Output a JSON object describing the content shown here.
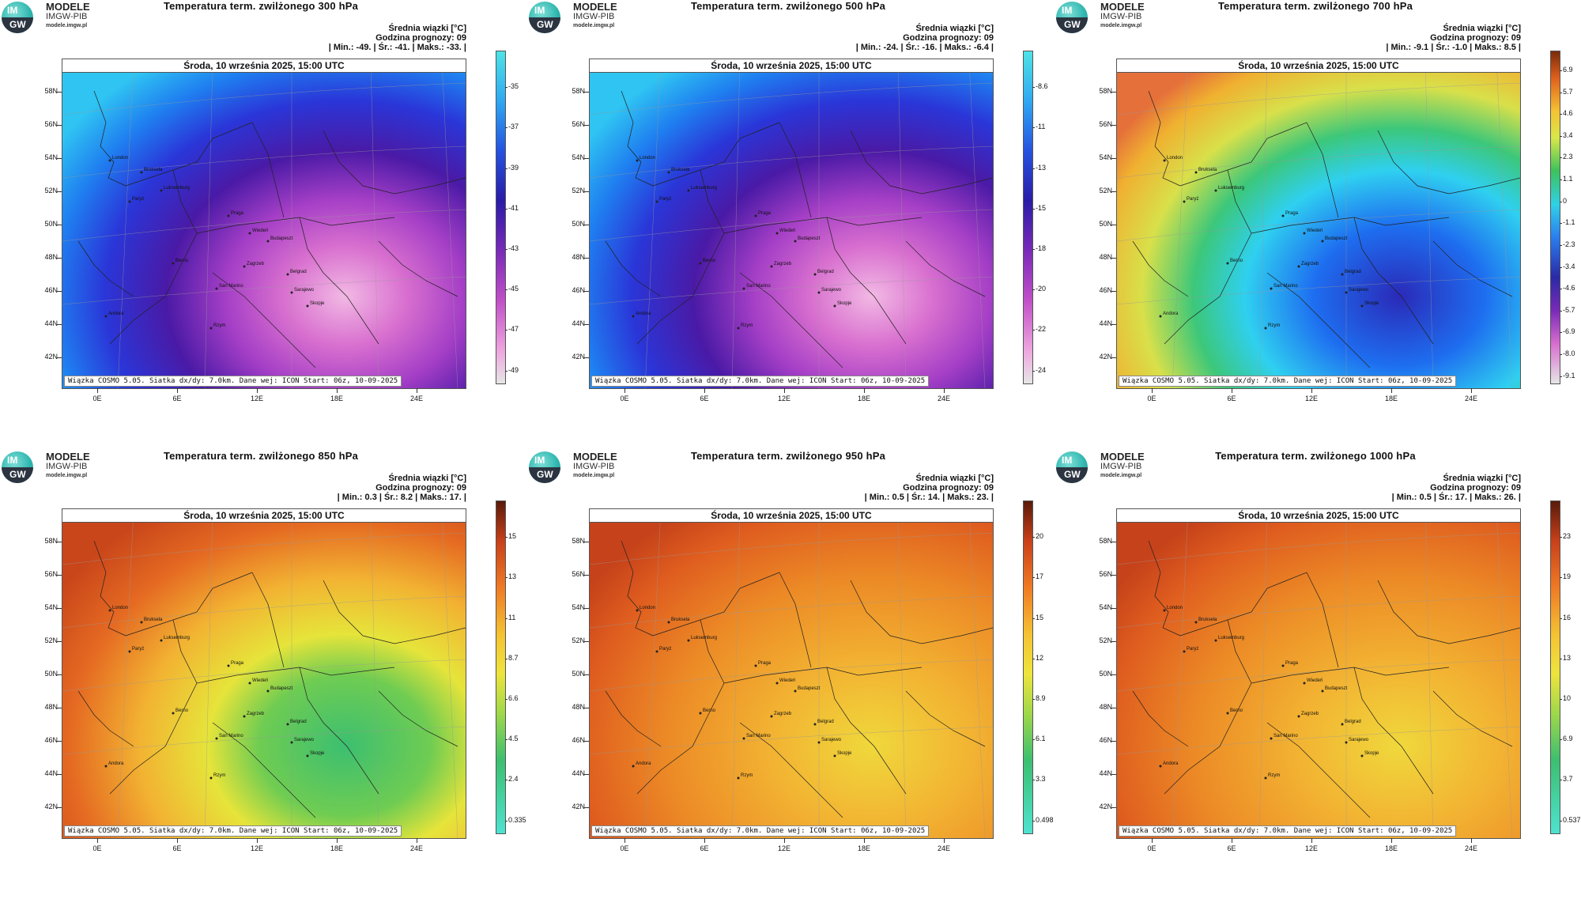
{
  "logo": {
    "line1": "MODELE",
    "line2": "IMGW-PIB",
    "line3": "modele.imgw.pl",
    "badge_top": "IM",
    "badge_bottom": "GW"
  },
  "common": {
    "subtitle": "Średnia wiązki [°C]",
    "forecast_hour": "Godzina prognozy: 09",
    "date": "Środa, 10 września 2025, 15:00 UTC",
    "footer": "Wiązka COSMO 5.05. Siatka dx/dy: 7.0km. Dane wej: ICON Start: 06z, 10-09-2025",
    "lat_labels": [
      "58N",
      "56N",
      "54N",
      "52N",
      "50N",
      "48N",
      "46N",
      "44N",
      "42N"
    ],
    "lon_labels": [
      "0E",
      "6E",
      "12E",
      "18E",
      "24E"
    ],
    "cities": [
      "London",
      "Bruksela",
      "Luksemburg",
      "Paryż",
      "Praga",
      "Wiedeń",
      "Budapeszt",
      "Berno",
      "Zagrzeb",
      "Belgrad",
      "San Marino",
      "Sarajewo",
      "Skopje",
      "Andora",
      "Rzym"
    ]
  },
  "panels": [
    {
      "title": "Temperatura term. zwilżonego 300 hPa",
      "stats": "| Min.:  -49. | Śr.:  -41. | Maks.:  -33. |",
      "cbar_labels": [
        "-35",
        "-37",
        "-39",
        "-41",
        "-43",
        "-45",
        "-47",
        "-49"
      ],
      "scheme": "cold",
      "colors": {
        "cbar_top": "#4de3e6",
        "cbar_bottom": "#e6e6e6"
      }
    },
    {
      "title": "Temperatura term. zwilżonego 500 hPa",
      "stats": "| Min.:  -24. | Śr.:  -16. | Maks.:  -6.4 |",
      "cbar_labels": [
        "-8.6",
        "-11",
        "-13",
        "-15",
        "-18",
        "-20",
        "-22",
        "-24"
      ],
      "scheme": "cold",
      "colors": {
        "cbar_top": "#4de3e6",
        "cbar_bottom": "#e6e6e6"
      }
    },
    {
      "title": "Temperatura term. zwilżonego 700 hPa",
      "stats": "| Min.:  -9.1 | Śr.:  -1.0 | Maks.:  8.5 |",
      "cbar_labels": [
        "6.9",
        "5.7",
        "4.6",
        "3.4",
        "2.3",
        "1.1",
        "0",
        "-1.1",
        "-2.3",
        "-3.4",
        "-4.6",
        "-5.7",
        "-6.9",
        "-8.0",
        "-9.1"
      ],
      "scheme": "mid",
      "colors": {
        "cbar_top": "#7a2a0a",
        "cbar_bottom": "#e6e6e6"
      }
    },
    {
      "title": "Temperatura term. zwilżonego 850 hPa",
      "stats": "| Min.:  0.3 | Śr.:  8.2 | Maks.:  17. |",
      "cbar_labels": [
        "15",
        "13",
        "11",
        "8.7",
        "6.6",
        "4.5",
        "2.4",
        "0.335"
      ],
      "scheme": "warm850",
      "colors": {
        "cbar_top": "#5a1a0a",
        "cbar_bottom": "#4de3d0"
      }
    },
    {
      "title": "Temperatura term. zwilżonego 950 hPa",
      "stats": "| Min.:  0.5 | Śr.:  14. | Maks.:  23. |",
      "cbar_labels": [
        "20",
        "17",
        "15",
        "12",
        "8.9",
        "6.1",
        "3.3",
        "0.498"
      ],
      "scheme": "warm",
      "colors": {
        "cbar_top": "#5a1a0a",
        "cbar_bottom": "#4de3d0"
      }
    },
    {
      "title": "Temperatura term. zwilżonego 1000 hPa",
      "stats": "| Min.:  0.5 | Śr.:  17. | Maks.:  26. |",
      "cbar_labels": [
        "23",
        "19",
        "16",
        "13",
        "10",
        "6.9",
        "3.7",
        "0.537"
      ],
      "scheme": "warm",
      "colors": {
        "cbar_top": "#5a1a0a",
        "cbar_bottom": "#4de3d0"
      }
    }
  ]
}
